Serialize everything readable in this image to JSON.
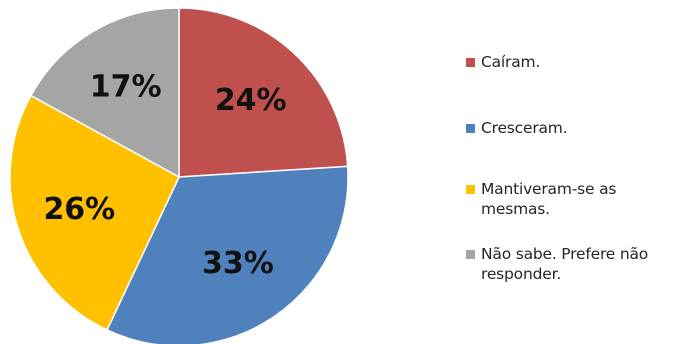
{
  "chart_data": {
    "type": "pie",
    "title": "",
    "slices": [
      {
        "label": "Caíram.",
        "value": 24,
        "display": "24%",
        "color": "#C0504D"
      },
      {
        "label": "Cresceram.",
        "value": 33,
        "display": "33%",
        "color": "#4F81BD"
      },
      {
        "label": "Mantiveram-se as mesmas.",
        "value": 26,
        "display": "26%",
        "color": "#FFC000"
      },
      {
        "label": "Não sabe. Prefere não responder.",
        "value": 17,
        "display": "17%",
        "color": "#A5A5A5"
      }
    ],
    "legend": {
      "position": "right",
      "items": [
        {
          "label_lines": [
            "Caíram."
          ]
        },
        {
          "label_lines": [
            "Cresceram."
          ]
        },
        {
          "label_lines": [
            "Mantiveram-se as",
            "mesmas."
          ]
        },
        {
          "label_lines": [
            "Não sabe. Prefere não",
            "responder."
          ]
        }
      ]
    }
  }
}
